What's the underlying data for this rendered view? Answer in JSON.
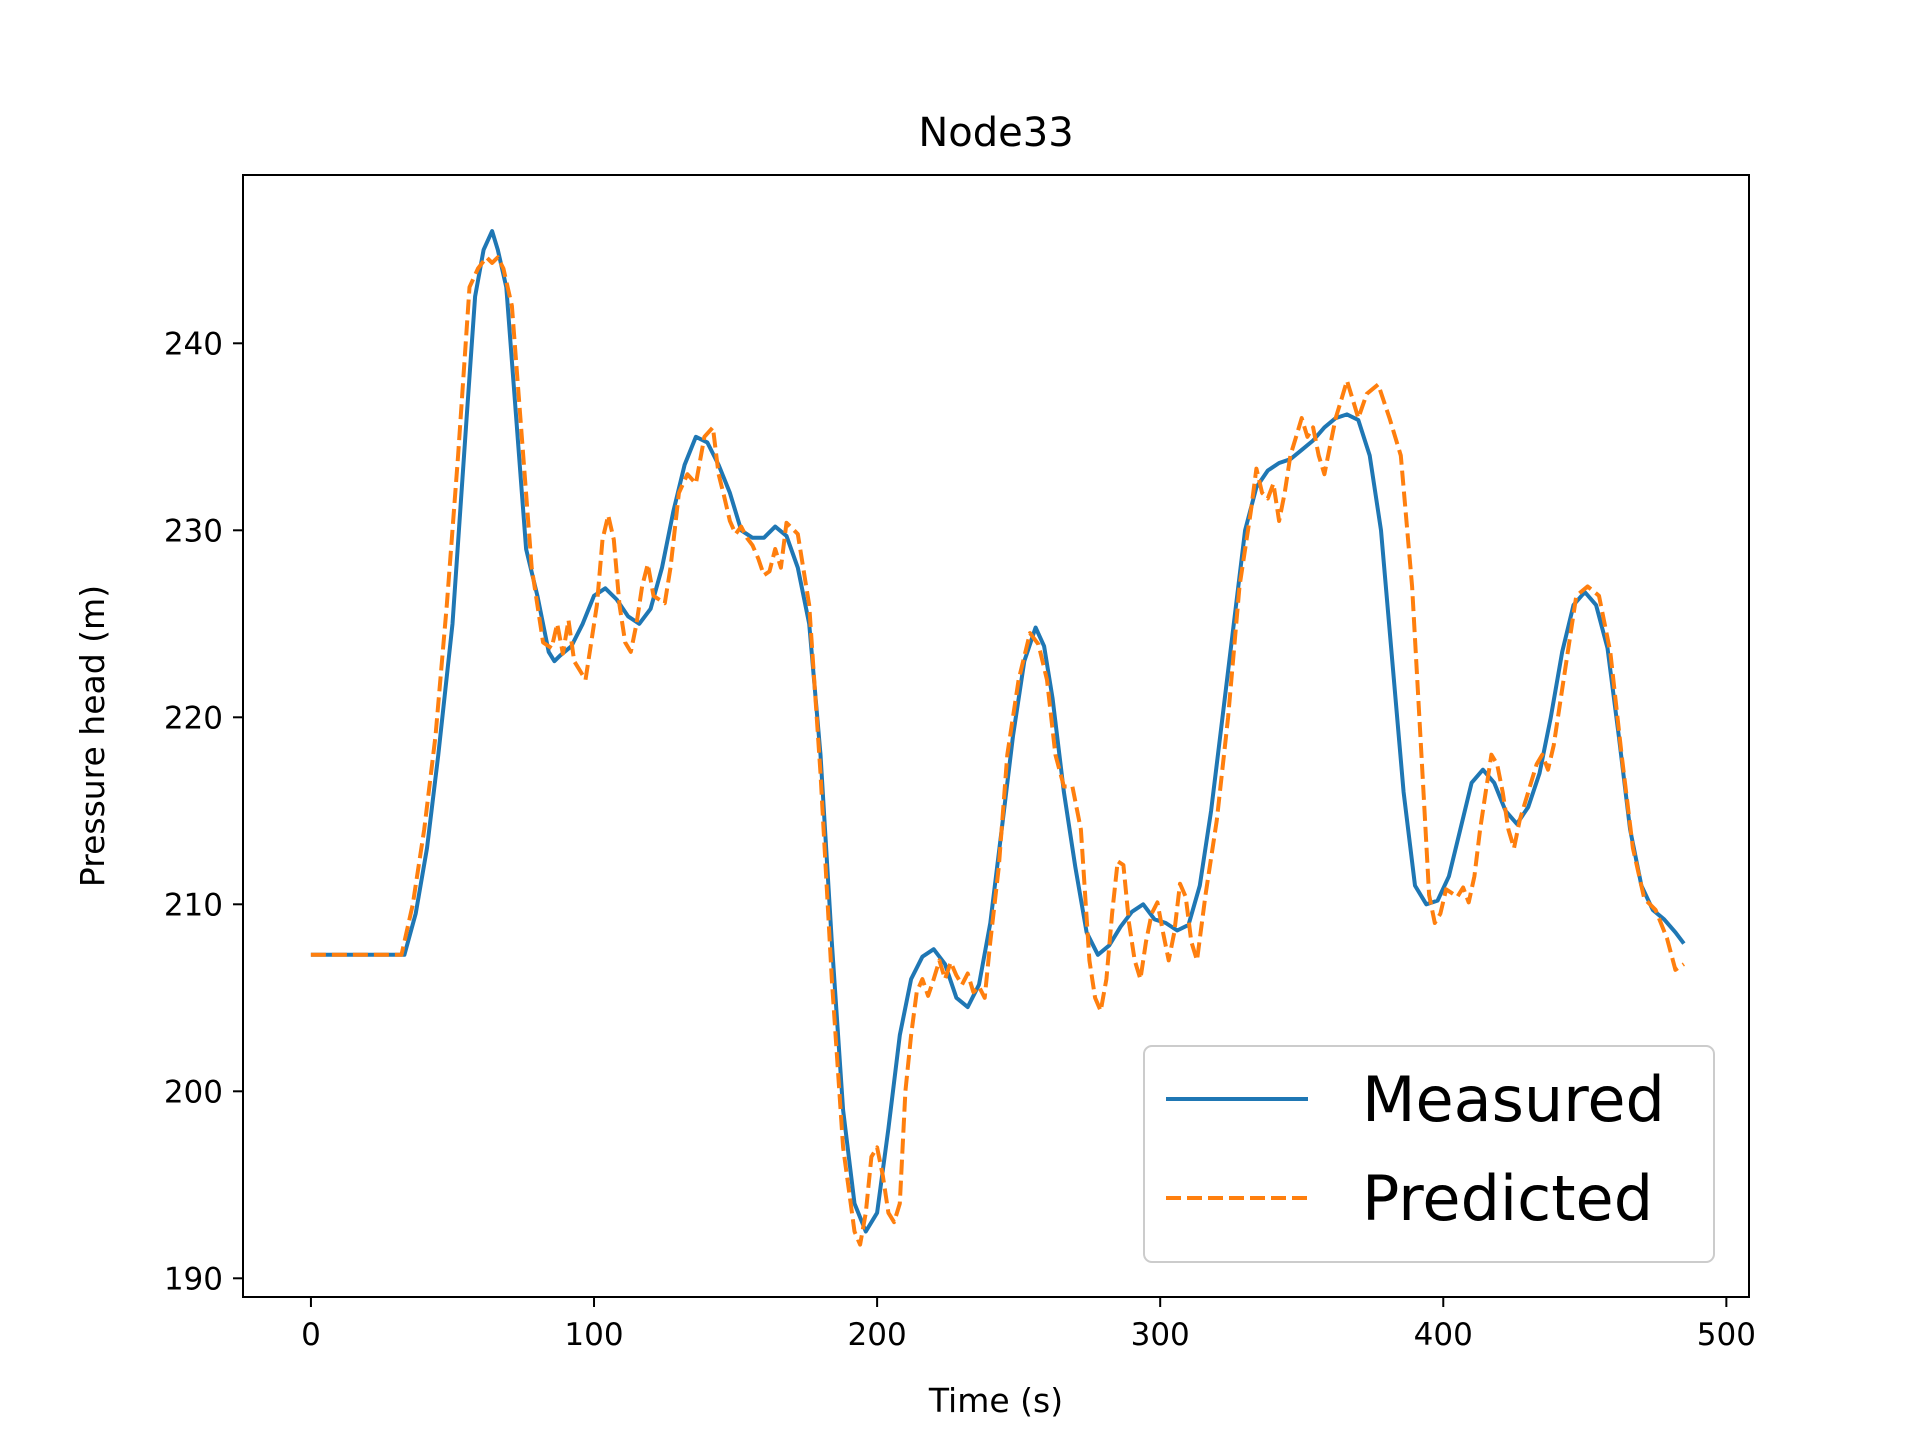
{
  "chart_data": {
    "type": "line",
    "title": "Node33",
    "xlabel": "Time (s)",
    "ylabel": "Pressure head (m)",
    "xlim": [
      -24,
      508
    ],
    "ylim": [
      189,
      249
    ],
    "xticks": [
      0,
      100,
      200,
      300,
      400,
      500
    ],
    "yticks": [
      190,
      200,
      210,
      220,
      230,
      240
    ],
    "legend_position": "lower-right",
    "series": [
      {
        "name": "Measured",
        "color": "#1f77b4",
        "style": "solid",
        "x": [
          0,
          10,
          20,
          33,
          37,
          41,
          45,
          50,
          55,
          58,
          61,
          64,
          66,
          69,
          72,
          76,
          80,
          84,
          86,
          88,
          92,
          96,
          100,
          104,
          108,
          112,
          116,
          120,
          124,
          128,
          132,
          136,
          140,
          144,
          148,
          152,
          156,
          160,
          164,
          168,
          172,
          176,
          180,
          184,
          188,
          192,
          196,
          200,
          204,
          208,
          212,
          216,
          220,
          224,
          228,
          232,
          236,
          240,
          244,
          248,
          252,
          256,
          259,
          262,
          266,
          270,
          274,
          278,
          282,
          286,
          290,
          294,
          298,
          302,
          306,
          310,
          314,
          318,
          322,
          326,
          330,
          334,
          338,
          342,
          346,
          350,
          354,
          358,
          362,
          366,
          370,
          374,
          378,
          382,
          386,
          390,
          394,
          398,
          402,
          406,
          410,
          414,
          418,
          422,
          426,
          430,
          434,
          438,
          442,
          446,
          450,
          454,
          458,
          462,
          466,
          470,
          474,
          478,
          482,
          485
        ],
        "y": [
          207.3,
          207.3,
          207.3,
          207.3,
          209.5,
          213,
          218,
          225,
          236,
          242.5,
          245,
          246,
          245,
          243,
          237,
          229,
          226.5,
          223.5,
          223,
          223.3,
          223.8,
          225,
          226.5,
          226.9,
          226.3,
          225.4,
          225,
          225.8,
          228,
          231,
          233.5,
          235,
          234.7,
          233.5,
          232,
          230,
          229.6,
          229.6,
          230.2,
          229.7,
          228,
          225,
          218,
          208,
          199,
          194,
          192.5,
          193.5,
          198,
          203,
          206,
          207.2,
          207.6,
          206.8,
          205,
          204.5,
          205.7,
          209,
          214,
          219,
          223,
          224.8,
          223.8,
          221,
          216,
          212,
          208.5,
          207.3,
          207.8,
          208.8,
          209.6,
          210,
          209.2,
          209,
          208.6,
          208.9,
          211,
          215,
          220,
          225,
          230,
          232.3,
          233.2,
          233.6,
          233.8,
          234.3,
          234.8,
          235.5,
          236,
          236.2,
          235.9,
          234,
          230,
          223,
          216,
          211,
          210,
          210.2,
          211.5,
          214,
          216.5,
          217.2,
          216.5,
          215,
          214.3,
          215.2,
          217,
          220,
          223.5,
          226,
          226.7,
          226,
          223.7,
          219,
          214,
          211,
          209.7,
          209.2,
          208.5,
          207.9
        ]
      },
      {
        "name": "Predicted",
        "color": "#ff7f0e",
        "style": "dashed",
        "x": [
          0,
          10,
          20,
          32,
          36,
          40,
          44,
          48,
          52,
          56,
          59,
          62,
          64,
          66,
          68,
          71,
          74,
          78,
          82,
          85,
          87,
          89,
          91,
          93,
          95,
          97,
          99,
          101,
          103,
          105,
          107,
          109,
          111,
          113,
          115,
          117,
          119,
          121,
          123,
          125,
          127,
          130,
          133,
          136,
          139,
          142,
          144,
          146,
          148,
          150,
          152,
          154,
          156,
          158,
          160,
          162,
          164,
          166,
          168,
          172,
          176,
          180,
          184,
          188,
          192,
          194,
          196,
          198,
          200,
          202,
          204,
          206,
          208,
          210,
          212,
          214,
          216,
          218,
          220,
          222,
          224,
          226,
          228,
          230,
          232,
          234,
          236,
          238,
          240,
          243,
          246,
          250,
          254,
          257,
          260,
          263,
          266,
          269,
          272,
          275,
          277,
          279,
          281,
          283,
          285,
          287,
          289,
          291,
          293,
          295,
          297,
          299,
          301,
          303,
          305,
          307,
          309,
          311,
          313,
          316,
          320,
          324,
          328,
          332,
          334,
          336,
          338,
          340,
          342,
          344,
          346,
          348,
          350,
          352,
          354,
          356,
          358,
          360,
          362,
          364,
          366,
          368,
          370,
          373,
          377,
          381,
          385,
          389,
          393,
          395,
          397,
          399,
          401,
          403,
          405,
          407,
          409,
          411,
          413,
          415,
          417,
          419,
          421,
          423,
          425,
          427,
          429,
          431,
          433,
          435,
          437,
          439,
          443,
          447,
          451,
          455,
          459,
          463,
          467,
          471,
          475,
          479,
          482,
          485
        ],
        "y": [
          207.3,
          207.3,
          207.3,
          207.3,
          210,
          214,
          219,
          226,
          234,
          243,
          244,
          244.6,
          244.3,
          244.6,
          244,
          242,
          236,
          228,
          224,
          223.7,
          225,
          223.4,
          225.2,
          223,
          222.5,
          222,
          224,
          226,
          229.5,
          230.8,
          229.5,
          226,
          224,
          223.5,
          225,
          227,
          228.2,
          226.5,
          226.3,
          226.1,
          228,
          232,
          233,
          232.5,
          235,
          235.5,
          233,
          231.8,
          230.5,
          229.8,
          230.2,
          229.6,
          229.2,
          228.5,
          227.6,
          227.8,
          229,
          228,
          230.4,
          229.8,
          226,
          217,
          206,
          197,
          192.5,
          191.8,
          193.5,
          196.5,
          197,
          195.5,
          193.5,
          193,
          194,
          200,
          203,
          205.3,
          206,
          205.1,
          206,
          207,
          206,
          206.9,
          206.2,
          205.7,
          206.3,
          205.3,
          205.6,
          205,
          208,
          212,
          218,
          222,
          224.5,
          223.9,
          222,
          218,
          216.3,
          216.3,
          214,
          207,
          205,
          204.3,
          206,
          209.5,
          212.3,
          212.1,
          209,
          207,
          206,
          208,
          209.5,
          210.1,
          208.5,
          207,
          208.5,
          211.1,
          210.4,
          208,
          207,
          210.5,
          214.5,
          220,
          227,
          231,
          233.3,
          232,
          231.7,
          232.5,
          230.5,
          232,
          234,
          235,
          236,
          235,
          235.5,
          234,
          233,
          234.5,
          236,
          237,
          238,
          237,
          236,
          237.3,
          237.8,
          236,
          234,
          227,
          216,
          210.5,
          209,
          209.5,
          210.8,
          210.6,
          210.4,
          210.9,
          210.1,
          211.5,
          214,
          216,
          218,
          217.5,
          216,
          214,
          213,
          214.5,
          215.5,
          216.5,
          217.5,
          218,
          217.2,
          218.5,
          222.5,
          226.5,
          227,
          226.5,
          223.5,
          218,
          213,
          210.3,
          209.7,
          208.2,
          206.5,
          206.8
        ]
      }
    ]
  }
}
